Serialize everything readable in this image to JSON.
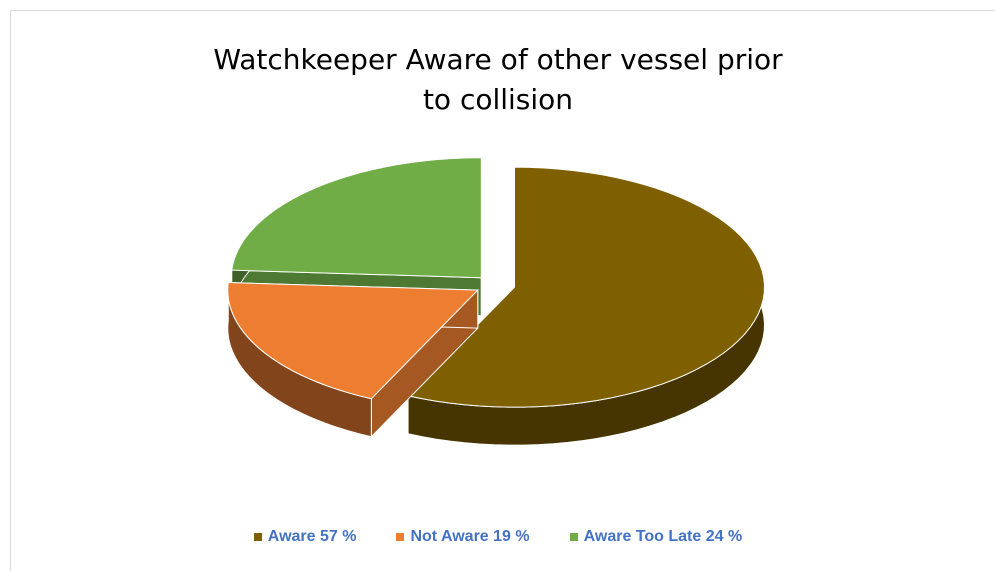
{
  "chart_data": {
    "type": "pie",
    "title": "Watchkeeper Aware of other vessel prior to collision",
    "categories": [
      "Aware 57 %",
      "Not Aware 19 %",
      "Aware Too Late 24 %"
    ],
    "values": [
      57,
      19,
      24
    ],
    "colors": [
      "#7f6000",
      "#ed7d31",
      "#70ad47"
    ],
    "legend": "bottom"
  }
}
